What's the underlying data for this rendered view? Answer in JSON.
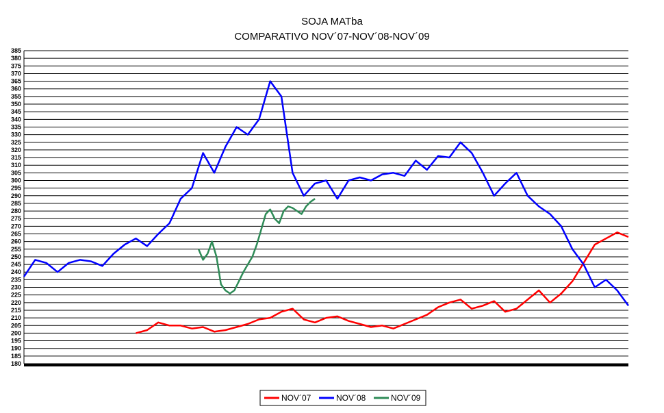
{
  "chart_data": {
    "type": "line",
    "title": "SOJA MATba",
    "subtitle": "COMPARATIVO NOV´07-NOV´08-NOV´09",
    "xlabel": "",
    "ylabel": "",
    "ylim": [
      180,
      385
    ],
    "ytick_step": 5,
    "grid": true,
    "legend_position": "bottom-center",
    "x": [
      0,
      5,
      10,
      15,
      20,
      25,
      30,
      35,
      40,
      45,
      50,
      55,
      60,
      65,
      70,
      75,
      80,
      85,
      90,
      95,
      100,
      105,
      110,
      115,
      120,
      125,
      130,
      135,
      140,
      145,
      150,
      155,
      160,
      165,
      170,
      175,
      180,
      185,
      190,
      195,
      200,
      205,
      210,
      215,
      220,
      225,
      230,
      235,
      240,
      245,
      250
    ],
    "series": [
      {
        "name": "NOV´07",
        "color": "#ff0000",
        "values": [
          null,
          null,
          null,
          null,
          null,
          null,
          null,
          null,
          null,
          null,
          200,
          202,
          207,
          205,
          205,
          203,
          204,
          201,
          202,
          204,
          206,
          209,
          210,
          214,
          216,
          209,
          207,
          210,
          211,
          208,
          206,
          204,
          205,
          203,
          206,
          209,
          212,
          217,
          220,
          222,
          216,
          218,
          221,
          214,
          216,
          222,
          228,
          220,
          226,
          234,
          246
        ]
      },
      {
        "name": "NOV´08",
        "color": "#0000ff",
        "values": [
          237,
          248,
          246,
          240,
          246,
          248,
          247,
          244,
          252,
          258,
          262,
          257,
          265,
          272,
          288,
          295,
          318,
          305,
          322,
          335,
          330,
          340,
          365,
          355,
          305,
          290,
          298,
          300,
          288,
          300,
          302,
          300,
          304,
          305,
          303,
          313,
          307,
          316,
          315,
          325,
          318,
          305,
          290,
          298,
          305,
          290,
          283,
          278,
          270,
          255,
          245
        ]
      },
      {
        "name": "NOV´09",
        "color": "#2e8b57",
        "values": [
          null,
          null,
          null,
          null,
          null,
          null,
          null,
          null,
          null,
          null,
          null,
          null,
          null,
          null,
          null,
          null,
          null,
          null,
          null,
          null,
          null,
          null,
          null,
          null,
          null,
          null,
          null,
          null,
          null,
          null,
          null,
          null,
          null,
          null,
          null,
          null,
          null,
          null,
          null,
          null,
          null,
          null,
          null,
          null,
          null,
          null,
          null,
          null,
          null,
          null,
          null
        ]
      }
    ],
    "series_extra": {
      "NOV´07_tail_x": [
        250,
        255,
        260,
        265,
        270
      ],
      "NOV´07_tail": [
        246,
        258,
        262,
        266,
        263
      ],
      "NOV´08_tail_x": [
        250,
        255,
        260,
        265,
        270
      ],
      "NOV´08_tail": [
        245,
        230,
        235,
        228,
        218
      ],
      "NOV´09_x": [
        78,
        80,
        82,
        84,
        86,
        88,
        90,
        92,
        94,
        96,
        98,
        100,
        102,
        104,
        106,
        108,
        110,
        112,
        114,
        116,
        118,
        120,
        122,
        124,
        126,
        128,
        130
      ],
      "NOV´09_values": [
        255,
        248,
        252,
        260,
        250,
        232,
        228,
        226,
        228,
        234,
        240,
        245,
        250,
        258,
        268,
        278,
        281,
        275,
        272,
        280,
        283,
        282,
        280,
        278,
        283,
        286,
        288
      ]
    }
  },
  "legend": {
    "items": [
      {
        "label": "NOV´07",
        "color": "#ff0000"
      },
      {
        "label": "NOV´08",
        "color": "#0000ff"
      },
      {
        "label": "NOV´09",
        "color": "#2e8b57"
      }
    ]
  }
}
